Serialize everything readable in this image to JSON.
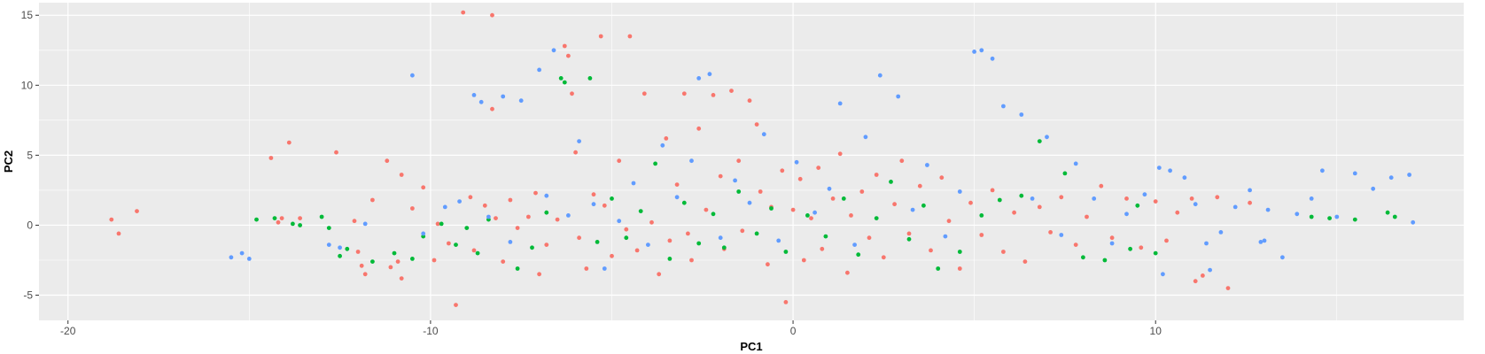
{
  "chart_data": {
    "type": "scatter",
    "title": "",
    "xlabel": "PC1",
    "ylabel": "PC2",
    "xlim": [
      -20.8,
      18.5
    ],
    "ylim": [
      -6.8,
      15.9
    ],
    "x_ticks": [
      -20,
      -10,
      0,
      10
    ],
    "y_ticks": [
      -5,
      0,
      5,
      10,
      15
    ],
    "x_tick_labels": [
      "-20",
      "-10",
      "0",
      "10"
    ],
    "y_tick_labels": [
      "-5",
      "0",
      "5",
      "10",
      "15"
    ],
    "grid": true,
    "legend": "none",
    "panel_color": "#ebebeb",
    "grid_color": "#ffffff",
    "series": [
      {
        "color": "#f8766d",
        "points": [
          [
            -18.8,
            0.4
          ],
          [
            -18.6,
            -0.6
          ],
          [
            -18.1,
            1.0
          ],
          [
            -14.4,
            4.8
          ],
          [
            -14.1,
            0.5
          ],
          [
            -13.9,
            5.9
          ],
          [
            -14.2,
            0.2
          ],
          [
            -13.6,
            0.5
          ],
          [
            -12.6,
            5.2
          ],
          [
            -12.1,
            0.3
          ],
          [
            -12.0,
            -1.9
          ],
          [
            -11.9,
            -2.9
          ],
          [
            -11.6,
            1.8
          ],
          [
            -11.8,
            -3.5
          ],
          [
            -11.2,
            4.6
          ],
          [
            -10.8,
            3.6
          ],
          [
            -11.1,
            -3.0
          ],
          [
            -10.9,
            -2.6
          ],
          [
            -10.8,
            -3.8
          ],
          [
            -10.5,
            1.2
          ],
          [
            -10.2,
            2.7
          ],
          [
            -9.9,
            -2.5
          ],
          [
            -9.8,
            0.1
          ],
          [
            -9.5,
            -1.3
          ],
          [
            -9.3,
            -5.7
          ],
          [
            -9.1,
            15.2
          ],
          [
            -8.9,
            2.0
          ],
          [
            -8.8,
            -1.8
          ],
          [
            -8.5,
            1.4
          ],
          [
            -8.3,
            15.0
          ],
          [
            -8.3,
            8.3
          ],
          [
            -8.2,
            0.5
          ],
          [
            -8.0,
            -2.6
          ],
          [
            -7.8,
            1.8
          ],
          [
            -7.6,
            -0.2
          ],
          [
            -7.3,
            0.6
          ],
          [
            -7.1,
            2.3
          ],
          [
            -7.0,
            -3.5
          ],
          [
            -6.8,
            -1.4
          ],
          [
            -6.5,
            0.4
          ],
          [
            -6.3,
            12.8
          ],
          [
            -6.2,
            12.1
          ],
          [
            -6.1,
            9.4
          ],
          [
            -6.0,
            5.2
          ],
          [
            -5.9,
            -0.9
          ],
          [
            -5.7,
            -3.1
          ],
          [
            -5.5,
            2.2
          ],
          [
            -5.3,
            13.5
          ],
          [
            -5.2,
            1.4
          ],
          [
            -5.0,
            -2.2
          ],
          [
            -4.8,
            4.6
          ],
          [
            -4.6,
            -0.3
          ],
          [
            -4.5,
            13.5
          ],
          [
            -4.3,
            -1.8
          ],
          [
            -4.1,
            9.4
          ],
          [
            -3.9,
            0.2
          ],
          [
            -3.7,
            -3.5
          ],
          [
            -3.5,
            6.2
          ],
          [
            -3.4,
            -1.1
          ],
          [
            -3.2,
            2.9
          ],
          [
            -3.0,
            9.4
          ],
          [
            -2.9,
            -0.6
          ],
          [
            -2.8,
            -2.5
          ],
          [
            -2.6,
            6.9
          ],
          [
            -2.4,
            1.1
          ],
          [
            -2.2,
            9.3
          ],
          [
            -2.0,
            3.5
          ],
          [
            -1.9,
            -1.7
          ],
          [
            -1.7,
            9.6
          ],
          [
            -1.5,
            4.6
          ],
          [
            -1.4,
            -0.4
          ],
          [
            -1.2,
            8.9
          ],
          [
            -1.0,
            7.2
          ],
          [
            -0.9,
            2.4
          ],
          [
            -0.7,
            -2.8
          ],
          [
            -0.6,
            1.3
          ],
          [
            -0.3,
            3.9
          ],
          [
            -0.2,
            -5.5
          ],
          [
            0.0,
            1.1
          ],
          [
            0.2,
            3.3
          ],
          [
            0.3,
            -2.5
          ],
          [
            0.5,
            0.5
          ],
          [
            0.7,
            4.1
          ],
          [
            0.8,
            -1.7
          ],
          [
            1.1,
            1.9
          ],
          [
            1.3,
            5.1
          ],
          [
            1.5,
            -3.4
          ],
          [
            1.6,
            0.7
          ],
          [
            1.9,
            2.4
          ],
          [
            2.1,
            -0.9
          ],
          [
            2.3,
            3.6
          ],
          [
            2.5,
            -2.3
          ],
          [
            2.8,
            1.5
          ],
          [
            3.0,
            4.6
          ],
          [
            3.2,
            -0.6
          ],
          [
            3.5,
            2.8
          ],
          [
            3.8,
            -1.8
          ],
          [
            4.1,
            3.4
          ],
          [
            4.3,
            0.3
          ],
          [
            4.6,
            -3.1
          ],
          [
            4.9,
            1.6
          ],
          [
            5.2,
            -0.7
          ],
          [
            5.5,
            2.5
          ],
          [
            5.8,
            -1.9
          ],
          [
            6.1,
            0.9
          ],
          [
            6.4,
            -2.6
          ],
          [
            6.8,
            1.3
          ],
          [
            7.1,
            -0.5
          ],
          [
            7.4,
            2.0
          ],
          [
            7.8,
            -1.4
          ],
          [
            8.1,
            0.6
          ],
          [
            8.5,
            2.8
          ],
          [
            8.8,
            -0.9
          ],
          [
            9.2,
            1.9
          ],
          [
            9.6,
            -1.6
          ],
          [
            10.0,
            1.7
          ],
          [
            10.3,
            -1.1
          ],
          [
            10.6,
            0.9
          ],
          [
            11.0,
            1.9
          ],
          [
            11.3,
            -3.6
          ],
          [
            11.7,
            2.0
          ],
          [
            12.0,
            -4.5
          ],
          [
            12.6,
            1.6
          ],
          [
            11.1,
            -4.0
          ]
        ]
      },
      {
        "color": "#00ba38",
        "points": [
          [
            -14.8,
            0.4
          ],
          [
            -14.3,
            0.5
          ],
          [
            -13.8,
            0.1
          ],
          [
            -13.6,
            0.0
          ],
          [
            -13.0,
            0.6
          ],
          [
            -12.8,
            -0.2
          ],
          [
            -12.5,
            -2.2
          ],
          [
            -12.3,
            -1.7
          ],
          [
            -11.6,
            -2.6
          ],
          [
            -11.0,
            -2.0
          ],
          [
            -10.5,
            -2.4
          ],
          [
            -10.2,
            -0.8
          ],
          [
            -9.7,
            0.1
          ],
          [
            -9.3,
            -1.4
          ],
          [
            -9.0,
            -0.2
          ],
          [
            -8.7,
            -2.0
          ],
          [
            -8.4,
            0.4
          ],
          [
            -7.6,
            -3.1
          ],
          [
            -7.2,
            -1.6
          ],
          [
            -6.8,
            0.9
          ],
          [
            -6.4,
            10.5
          ],
          [
            -6.3,
            10.2
          ],
          [
            -5.6,
            10.5
          ],
          [
            -5.4,
            -1.2
          ],
          [
            -5.0,
            1.9
          ],
          [
            -4.6,
            -0.9
          ],
          [
            -4.2,
            1.0
          ],
          [
            -3.8,
            4.4
          ],
          [
            -3.4,
            -2.4
          ],
          [
            -3.0,
            1.6
          ],
          [
            -2.6,
            -1.3
          ],
          [
            -2.2,
            0.8
          ],
          [
            -1.9,
            -1.6
          ],
          [
            -1.5,
            2.4
          ],
          [
            -1.0,
            -0.6
          ],
          [
            -0.6,
            1.2
          ],
          [
            -0.2,
            -1.9
          ],
          [
            0.4,
            0.7
          ],
          [
            0.9,
            -0.8
          ],
          [
            1.4,
            1.9
          ],
          [
            1.8,
            -2.1
          ],
          [
            2.3,
            0.5
          ],
          [
            2.7,
            3.1
          ],
          [
            3.2,
            -1.0
          ],
          [
            3.6,
            1.4
          ],
          [
            4.0,
            -3.1
          ],
          [
            4.6,
            -1.9
          ],
          [
            5.2,
            0.7
          ],
          [
            5.7,
            1.8
          ],
          [
            6.3,
            2.1
          ],
          [
            6.8,
            6.0
          ],
          [
            7.5,
            3.7
          ],
          [
            8.0,
            -2.3
          ],
          [
            8.6,
            -2.5
          ],
          [
            9.3,
            -1.7
          ],
          [
            9.5,
            1.4
          ],
          [
            10.0,
            -2.0
          ],
          [
            14.3,
            0.6
          ],
          [
            14.8,
            0.5
          ],
          [
            15.5,
            0.4
          ],
          [
            16.4,
            0.9
          ],
          [
            16.6,
            0.6
          ]
        ]
      },
      {
        "color": "#619cff",
        "points": [
          [
            -15.5,
            -2.3
          ],
          [
            -15.2,
            -2.0
          ],
          [
            -15.0,
            -2.4
          ],
          [
            -12.8,
            -1.4
          ],
          [
            -12.5,
            -1.6
          ],
          [
            -11.8,
            0.1
          ],
          [
            -10.5,
            10.7
          ],
          [
            -10.2,
            -0.6
          ],
          [
            -9.6,
            1.3
          ],
          [
            -9.2,
            1.7
          ],
          [
            -8.8,
            9.3
          ],
          [
            -8.6,
            8.8
          ],
          [
            -8.4,
            0.6
          ],
          [
            -8.0,
            9.2
          ],
          [
            -7.8,
            -1.2
          ],
          [
            -7.5,
            8.9
          ],
          [
            -7.0,
            11.1
          ],
          [
            -6.8,
            2.1
          ],
          [
            -6.6,
            12.5
          ],
          [
            -6.2,
            0.7
          ],
          [
            -5.9,
            6.0
          ],
          [
            -5.5,
            1.5
          ],
          [
            -5.2,
            -3.1
          ],
          [
            -4.8,
            0.3
          ],
          [
            -4.4,
            3.0
          ],
          [
            -4.0,
            -1.4
          ],
          [
            -3.6,
            5.7
          ],
          [
            -3.2,
            2.0
          ],
          [
            -2.8,
            4.6
          ],
          [
            -2.6,
            10.5
          ],
          [
            -2.3,
            10.8
          ],
          [
            -2.0,
            -0.9
          ],
          [
            -1.6,
            3.2
          ],
          [
            -1.2,
            1.6
          ],
          [
            -0.8,
            6.5
          ],
          [
            -0.4,
            -1.1
          ],
          [
            0.1,
            4.5
          ],
          [
            0.6,
            0.9
          ],
          [
            1.0,
            2.6
          ],
          [
            1.3,
            8.7
          ],
          [
            1.7,
            -1.4
          ],
          [
            2.0,
            6.3
          ],
          [
            2.4,
            10.7
          ],
          [
            2.9,
            9.2
          ],
          [
            3.3,
            1.1
          ],
          [
            3.7,
            4.3
          ],
          [
            4.2,
            -0.8
          ],
          [
            4.6,
            2.4
          ],
          [
            5.0,
            12.4
          ],
          [
            5.2,
            12.5
          ],
          [
            5.5,
            11.9
          ],
          [
            5.8,
            8.5
          ],
          [
            6.3,
            7.9
          ],
          [
            6.6,
            1.9
          ],
          [
            7.0,
            6.3
          ],
          [
            7.4,
            -0.7
          ],
          [
            7.8,
            4.4
          ],
          [
            8.3,
            1.9
          ],
          [
            8.8,
            -1.3
          ],
          [
            9.2,
            0.8
          ],
          [
            9.7,
            2.2
          ],
          [
            10.1,
            4.1
          ],
          [
            10.4,
            3.9
          ],
          [
            10.8,
            3.4
          ],
          [
            11.1,
            1.5
          ],
          [
            11.4,
            -1.3
          ],
          [
            11.8,
            -0.5
          ],
          [
            12.2,
            1.3
          ],
          [
            12.6,
            2.5
          ],
          [
            13.1,
            1.1
          ],
          [
            13.5,
            -2.3
          ],
          [
            13.9,
            0.8
          ],
          [
            14.3,
            1.9
          ],
          [
            14.6,
            3.9
          ],
          [
            15.0,
            0.6
          ],
          [
            15.5,
            3.7
          ],
          [
            16.0,
            2.6
          ],
          [
            16.5,
            3.4
          ],
          [
            17.0,
            3.6
          ],
          [
            17.1,
            0.2
          ],
          [
            10.2,
            -3.5
          ],
          [
            11.5,
            -3.2
          ],
          [
            13.0,
            -1.1
          ],
          [
            12.9,
            -1.2
          ]
        ]
      }
    ]
  }
}
